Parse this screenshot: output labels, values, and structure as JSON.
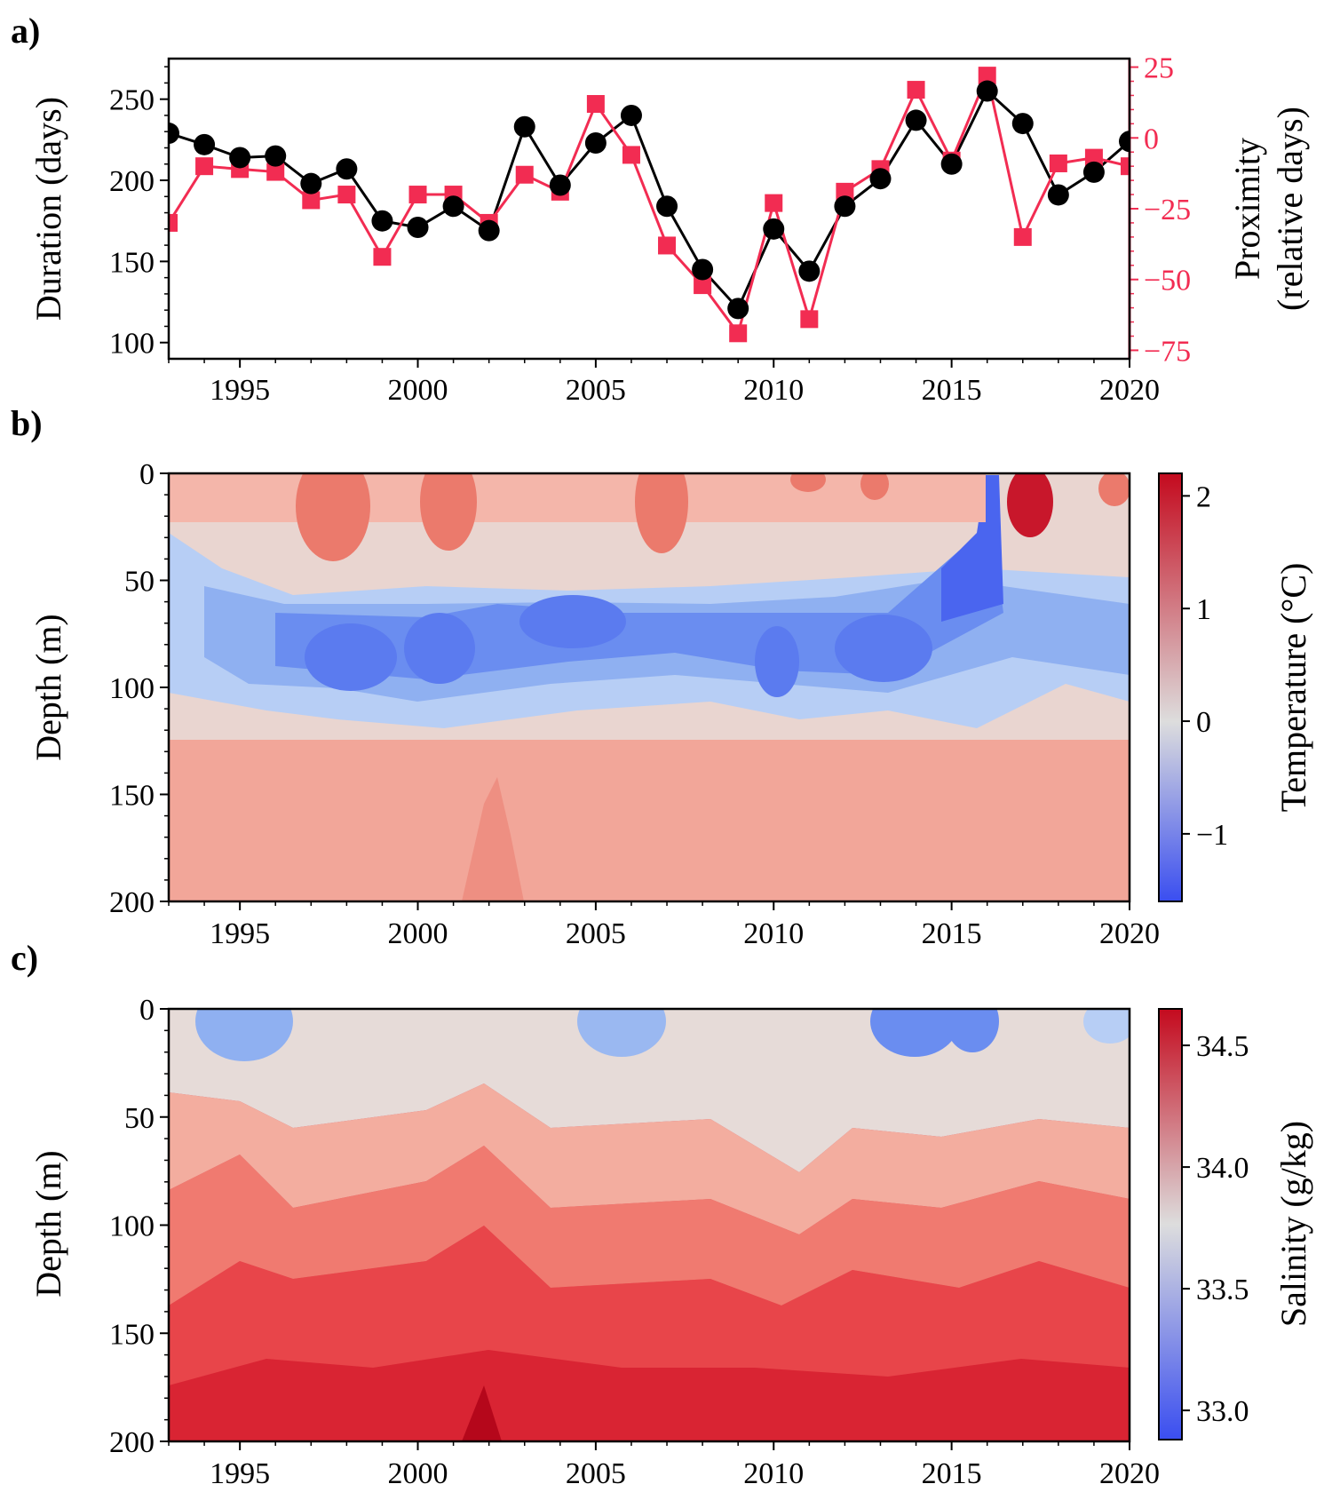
{
  "colors": {
    "duration": "#000000",
    "proximity": "#f22c52",
    "cold": "#3a4ef0",
    "neutral": "#dddddd",
    "warm": "#c40a1e"
  },
  "chart_data": [
    {
      "type": "line",
      "panel_label": "a)",
      "x": [
        1993,
        1994,
        1995,
        1996,
        1997,
        1998,
        1999,
        2000,
        2001,
        2002,
        2003,
        2004,
        2005,
        2006,
        2007,
        2008,
        2009,
        2010,
        2011,
        2012,
        2013,
        2014,
        2015,
        2016,
        2017,
        2018,
        2019,
        2020
      ],
      "xlim": [
        1993,
        2020
      ],
      "x_ticks": [
        "1995",
        "2000",
        "2005",
        "2010",
        "2015",
        "2020"
      ],
      "series": [
        {
          "axis": "left",
          "marker": "circle",
          "values": [
            229,
            222,
            214,
            215,
            198,
            207,
            175,
            171,
            184,
            169,
            233,
            197,
            223,
            240,
            184,
            145,
            121,
            170,
            144,
            184,
            201,
            237,
            210,
            255,
            235,
            191,
            205,
            224
          ]
        },
        {
          "axis": "right",
          "marker": "square",
          "values": [
            -30,
            -10,
            -11,
            -12,
            -22,
            -20,
            -42,
            -20,
            -20,
            -30,
            -13,
            -19,
            12,
            -6,
            -38,
            -52,
            -69,
            -23,
            -64,
            -19,
            -11,
            17,
            -8,
            22,
            -35,
            -9,
            -7,
            -10
          ]
        }
      ],
      "ylabel": "Duration (days)",
      "ylim": [
        90,
        275
      ],
      "y_ticks": [
        "100",
        "150",
        "200",
        "250"
      ],
      "ylabel_right": [
        "Proximity",
        "(relative days)"
      ],
      "ylim_right": [
        -78,
        28
      ],
      "y_ticks_right": [
        "25",
        "0",
        "−25",
        "−50",
        "−75"
      ]
    },
    {
      "type": "heatmap",
      "panel_label": "b)",
      "ylabel": "Depth (m)",
      "colorbar_label": "Temperature (°C)",
      "xlim": [
        1993,
        2020
      ],
      "x_ticks": [
        "1995",
        "2000",
        "2005",
        "2010",
        "2015",
        "2020"
      ],
      "ylim": [
        200,
        0
      ],
      "y_ticks": [
        "0",
        "50",
        "100",
        "150",
        "200"
      ],
      "colorbar_range": [
        -1.6,
        2.2
      ],
      "colorbar_ticks": [
        "2",
        "1",
        "0",
        "−1"
      ]
    },
    {
      "type": "heatmap",
      "panel_label": "c)",
      "ylabel": "Depth (m)",
      "colorbar_label": "Salinity (g/kg)",
      "xlim": [
        1993,
        2020
      ],
      "x_ticks": [
        "1995",
        "2000",
        "2005",
        "2010",
        "2015",
        "2020"
      ],
      "ylim": [
        200,
        0
      ],
      "y_ticks": [
        "0",
        "50",
        "100",
        "150",
        "200"
      ],
      "colorbar_range": [
        32.88,
        34.65
      ],
      "colorbar_ticks": [
        "34.5",
        "34.0",
        "33.5",
        "33.0"
      ]
    }
  ]
}
